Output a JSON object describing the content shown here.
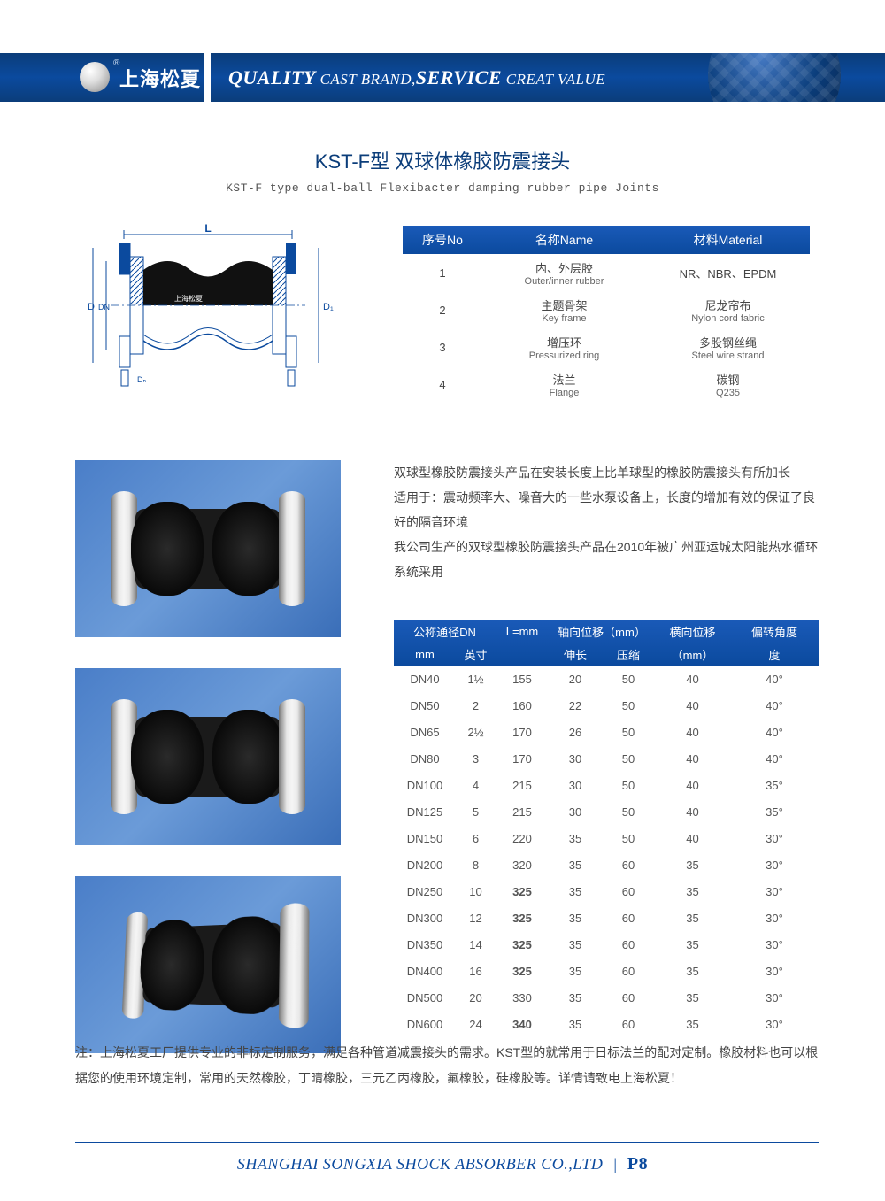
{
  "header": {
    "logo_text": "上海松夏",
    "slogan_q": "QUALITY",
    "slogan_cb": " CAST BRAND,",
    "slogan_s": "SERVICE",
    "slogan_cv": " CREAT VALUE"
  },
  "title": {
    "cn": "KST-F型 双球体橡胶防震接头",
    "en": "KST-F type dual-ball Flexibacter damping rubber pipe Joints"
  },
  "diagram_labels": {
    "L": "L",
    "D": "D",
    "DN": "DN",
    "D1": "D₁",
    "brand": "上海松夏"
  },
  "materials": {
    "headers": {
      "no": "序号No",
      "name": "名称Name",
      "material": "材料Material"
    },
    "rows": [
      {
        "no": "1",
        "name_cn": "内、外层胶",
        "name_en": "Outer/inner rubber",
        "mat": "NR、NBR、EPDM"
      },
      {
        "no": "2",
        "name_cn": "主题骨架",
        "name_en": "Key frame",
        "mat_cn": "尼龙帘布",
        "mat_en": "Nylon cord fabric"
      },
      {
        "no": "3",
        "name_cn": "增压环",
        "name_en": "Pressurized ring",
        "mat_cn": "多股钢丝绳",
        "mat_en": "Steel wire strand"
      },
      {
        "no": "4",
        "name_cn": "法兰",
        "name_en": "Flange",
        "mat_cn": "碳钢",
        "mat_en": "Q235"
      }
    ]
  },
  "desc": {
    "p1": "双球型橡胶防震接头产品在安装长度上比单球型的橡胶防震接头有所加长",
    "p2": "适用于：震动频率大、噪音大的一些水泵设备上，长度的增加有效的保证了良好的隔音环境",
    "p3": "我公司生产的双球型橡胶防震接头产品在2010年被广州亚运城太阳能热水循环系统采用"
  },
  "spec": {
    "headers": {
      "dn": "公称通径DN",
      "mm": "mm",
      "inch": "英寸",
      "L": "L=mm",
      "axial": "轴向位移（mm）",
      "ext": "伸长",
      "comp": "压缩",
      "lateral": "横向位移",
      "lateral_unit": "（mm）",
      "angle": "偏转角度",
      "angle_unit": "度"
    },
    "rows": [
      {
        "dn": "DN40",
        "inch": "1½",
        "L": "155",
        "ext": "20",
        "comp": "50",
        "lat": "40",
        "ang": "40°"
      },
      {
        "dn": "DN50",
        "inch": "2",
        "L": "160",
        "ext": "22",
        "comp": "50",
        "lat": "40",
        "ang": "40°"
      },
      {
        "dn": "DN65",
        "inch": "2½",
        "L": "170",
        "ext": "26",
        "comp": "50",
        "lat": "40",
        "ang": "40°"
      },
      {
        "dn": "DN80",
        "inch": "3",
        "L": "170",
        "ext": "30",
        "comp": "50",
        "lat": "40",
        "ang": "40°"
      },
      {
        "dn": "DN100",
        "inch": "4",
        "L": "215",
        "ext": "30",
        "comp": "50",
        "lat": "40",
        "ang": "35°"
      },
      {
        "dn": "DN125",
        "inch": "5",
        "L": "215",
        "ext": "30",
        "comp": "50",
        "lat": "40",
        "ang": "35°"
      },
      {
        "dn": "DN150",
        "inch": "6",
        "L": "220",
        "ext": "35",
        "comp": "50",
        "lat": "40",
        "ang": "30°"
      },
      {
        "dn": "DN200",
        "inch": "8",
        "L": "320",
        "ext": "35",
        "comp": "60",
        "lat": "35",
        "ang": "30°"
      },
      {
        "dn": "DN250",
        "inch": "10",
        "L": "325",
        "ext": "35",
        "comp": "60",
        "lat": "35",
        "ang": "30°",
        "bold": true
      },
      {
        "dn": "DN300",
        "inch": "12",
        "L": "325",
        "ext": "35",
        "comp": "60",
        "lat": "35",
        "ang": "30°",
        "bold": true
      },
      {
        "dn": "DN350",
        "inch": "14",
        "L": "325",
        "ext": "35",
        "comp": "60",
        "lat": "35",
        "ang": "30°",
        "bold": true
      },
      {
        "dn": "DN400",
        "inch": "16",
        "L": "325",
        "ext": "35",
        "comp": "60",
        "lat": "35",
        "ang": "30°",
        "bold": true
      },
      {
        "dn": "DN500",
        "inch": "20",
        "L": "330",
        "ext": "35",
        "comp": "60",
        "lat": "35",
        "ang": "30°"
      },
      {
        "dn": "DN600",
        "inch": "24",
        "L": "340",
        "ext": "35",
        "comp": "60",
        "lat": "35",
        "ang": "30°",
        "bold": true
      }
    ]
  },
  "note": "注：上海松夏工厂提供专业的非标定制服务，满足各种管道减震接头的需求。KST型的就常用于日标法兰的配对定制。橡胶材料也可以根据您的使用环境定制，常用的天然橡胶，丁晴橡胶，三元乙丙橡胶，氟橡胶，硅橡胶等。详情请致电上海松夏！",
  "footer": {
    "company": "SHANGHAI SONGXIA SHOCK ABSORBER CO.,LTD",
    "page": "P8"
  }
}
